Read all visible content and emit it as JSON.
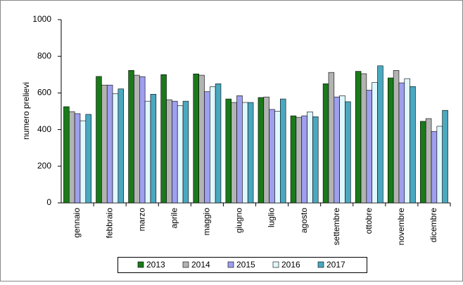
{
  "chart_data": {
    "type": "bar",
    "y_label": "numero prelievi",
    "categories": [
      "gennaio",
      "febbraio",
      "marzo",
      "aprile",
      "maggio",
      "giugno",
      "luglio",
      "agosto",
      "settembre",
      "ottobre",
      "novembre",
      "dicembre"
    ],
    "series": [
      {
        "name": "2013",
        "color": "#1a7a1a",
        "values": [
          525,
          690,
          723,
          700,
          704,
          567,
          575,
          475,
          650,
          718,
          682,
          445
        ]
      },
      {
        "name": "2014",
        "color": "#b3b3b3",
        "values": [
          498,
          643,
          697,
          563,
          697,
          548,
          578,
          467,
          712,
          705,
          723,
          460
        ]
      },
      {
        "name": "2015",
        "color": "#9f9fef",
        "values": [
          487,
          643,
          689,
          555,
          607,
          585,
          510,
          475,
          578,
          615,
          655,
          390
        ]
      },
      {
        "name": "2016",
        "color": "#e0f8ff",
        "values": [
          448,
          595,
          555,
          530,
          634,
          548,
          500,
          497,
          585,
          657,
          678,
          418
        ]
      },
      {
        "name": "2017",
        "color": "#4aa8c0",
        "values": [
          483,
          622,
          593,
          555,
          650,
          548,
          567,
          470,
          552,
          748,
          635,
          505
        ]
      }
    ],
    "ylim": [
      0,
      1000
    ],
    "yticks": [
      0,
      200,
      400,
      600,
      800,
      1000
    ],
    "grid": false
  }
}
